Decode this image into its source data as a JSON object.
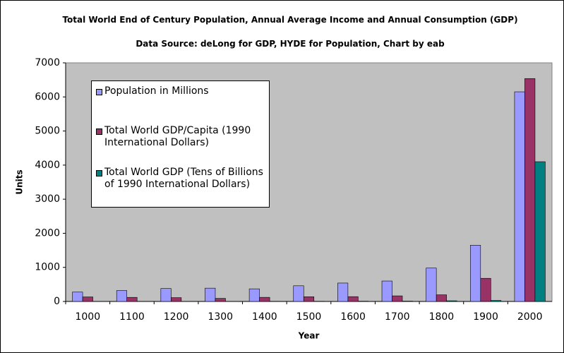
{
  "chart_data": {
    "type": "bar",
    "title": "Total World End of Century Population, Annual Average Income and Annual Consumption (GDP)",
    "subtitle": "Data Source: deLong for GDP, HYDE for Population, Chart by eab",
    "x_label": "Year",
    "y_label": "Units",
    "categories": [
      "1000",
      "1100",
      "1200",
      "1300",
      "1400",
      "1500",
      "1600",
      "1700",
      "1800",
      "1900",
      "2000"
    ],
    "series": [
      {
        "name": "Population in Millions",
        "color": "#9999ff",
        "values": [
          275,
          320,
          380,
          390,
          370,
          460,
          540,
          600,
          980,
          1650,
          6150
        ]
      },
      {
        "name": "Total World GDP/Capita (1990 International Dollars)",
        "color": "#993366",
        "values": [
          133,
          120,
          112,
          90,
          121,
          138,
          141,
          164,
          195,
          679,
          6539
        ]
      },
      {
        "name": "Total World GDP (Tens of Billions of 1990 International Dollars)",
        "color": "#008080",
        "values": [
          4,
          4,
          4,
          4,
          5,
          6,
          8,
          10,
          20,
          30,
          4100
        ]
      }
    ],
    "ylim": [
      0,
      7000
    ],
    "yticks": [
      0,
      1000,
      2000,
      3000,
      4000,
      5000,
      6000,
      7000
    ],
    "grid": false,
    "plot_background": "#c0c0c0"
  }
}
